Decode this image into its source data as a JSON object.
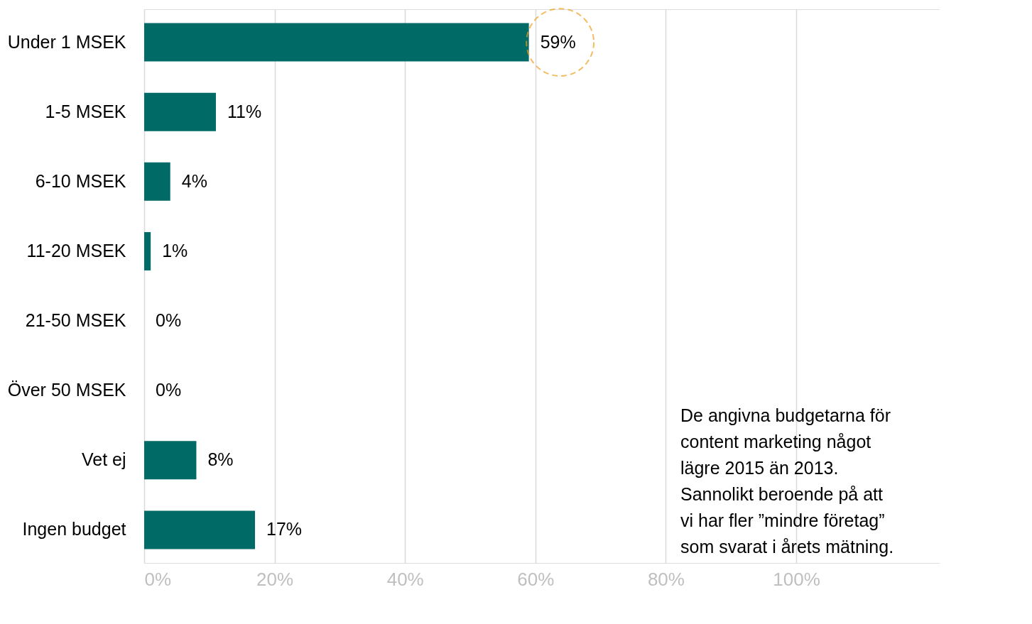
{
  "chart_data": {
    "type": "bar",
    "orientation": "horizontal",
    "categories": [
      "Under 1 MSEK",
      "1-5 MSEK",
      "6-10 MSEK",
      "11-20 MSEK",
      "21-50 MSEK",
      "Över 50 MSEK",
      "Vet ej",
      "Ingen budget"
    ],
    "values": [
      59,
      11,
      4,
      1,
      0,
      0,
      8,
      17
    ],
    "color": "#006a66",
    "xlim": [
      0,
      122
    ],
    "xticks": [
      {
        "value": 0,
        "label": "0%"
      },
      {
        "value": 20,
        "label": "20%"
      },
      {
        "value": 40,
        "label": "40%"
      },
      {
        "value": 60,
        "label": "60%"
      },
      {
        "value": 80,
        "label": "80%"
      },
      {
        "value": 100,
        "label": "100%"
      }
    ],
    "grid": "x",
    "value_labels": [
      "59%",
      "11%",
      "4%",
      "1%",
      "0%",
      "0%",
      "8%",
      "17%"
    ],
    "annotations": [
      "De angivna budgetarna för\ncontent marketing något\nlägre 2015 än 2013.\nSannolikt beroende på att\nvi har fler ”mindre företag”\nsom svarat i årets mätning."
    ]
  }
}
